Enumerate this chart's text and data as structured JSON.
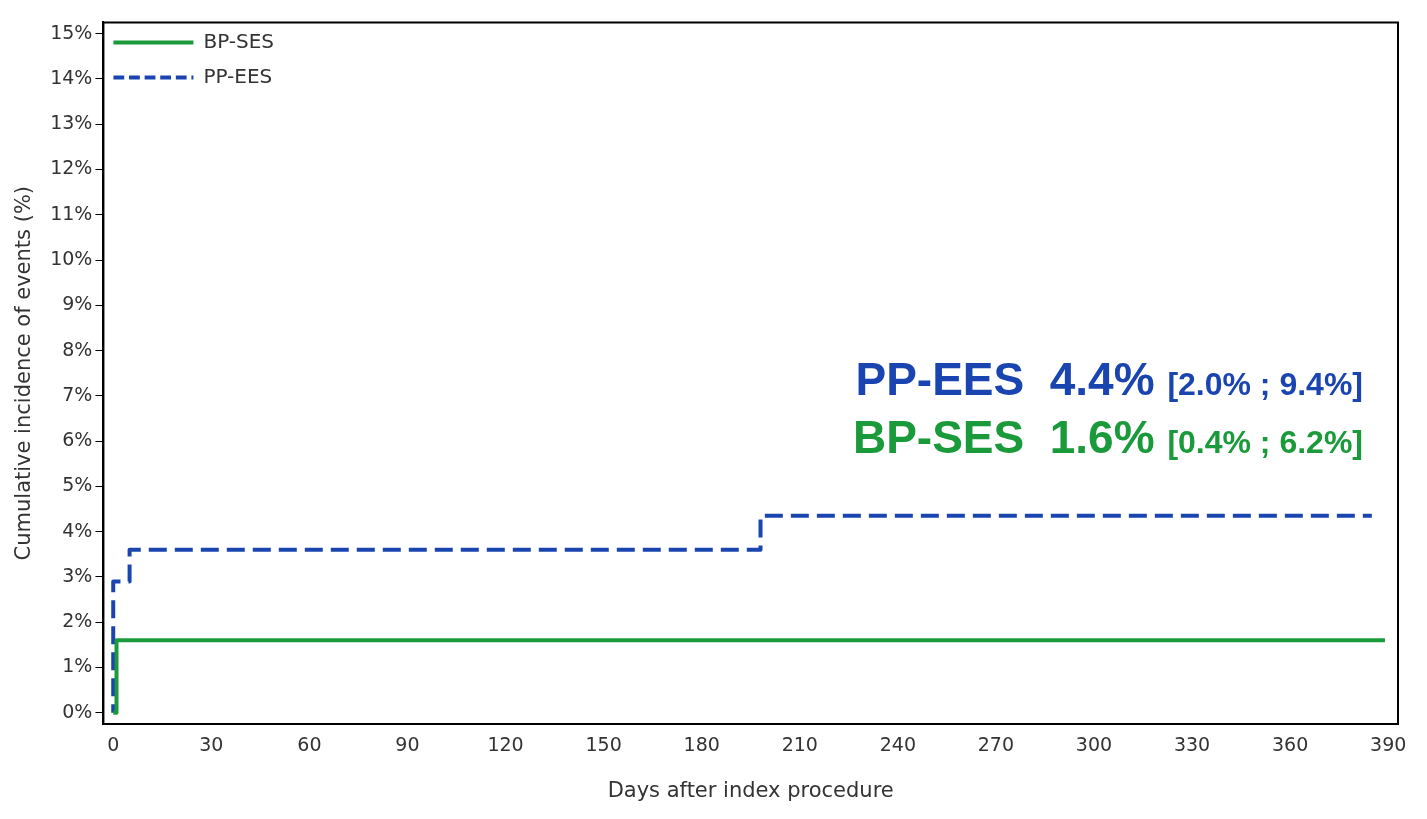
{
  "chart_data": {
    "type": "step",
    "xlabel": "Days after index procedure",
    "ylabel": "Cumulative incidence of events (%)",
    "xlim": [
      -3,
      393
    ],
    "xticks": [
      0,
      30,
      60,
      90,
      120,
      150,
      180,
      210,
      240,
      270,
      300,
      330,
      360,
      390
    ],
    "ylim": [
      -0.25,
      15.25
    ],
    "yticks": [
      {
        "value": 0,
        "label": "0%"
      },
      {
        "value": 1,
        "label": "1%"
      },
      {
        "value": 2,
        "label": "2%"
      },
      {
        "value": 3,
        "label": "3%"
      },
      {
        "value": 4,
        "label": "4%"
      },
      {
        "value": 5,
        "label": "5%"
      },
      {
        "value": 6,
        "label": "6%"
      },
      {
        "value": 7,
        "label": "7%"
      },
      {
        "value": 8,
        "label": "8%"
      },
      {
        "value": 9,
        "label": "9%"
      },
      {
        "value": 10,
        "label": "10%"
      },
      {
        "value": 11,
        "label": "11%"
      },
      {
        "value": 12,
        "label": "12%"
      },
      {
        "value": 13,
        "label": "13%"
      },
      {
        "value": 14,
        "label": "14%"
      },
      {
        "value": 15,
        "label": "15%"
      }
    ],
    "series": [
      {
        "name": "BP-SES",
        "color": "#1a9a3a",
        "line_style": "solid",
        "x": [
          0,
          1,
          389
        ],
        "values": [
          0,
          1.6,
          1.6
        ]
      },
      {
        "name": "PP-EES",
        "color": "#1a45b0",
        "line_style": "dashed",
        "x": [
          0,
          0,
          5,
          198,
          385
        ],
        "values": [
          0,
          2.9,
          3.6,
          4.35,
          4.35
        ]
      }
    ],
    "annotations": [
      "PP-EES  4.4% [2.0% ; 9.4%]",
      "BP-SES  1.6% [0.4% ; 6.2%]"
    ],
    "legend": "top left",
    "grid": false
  }
}
